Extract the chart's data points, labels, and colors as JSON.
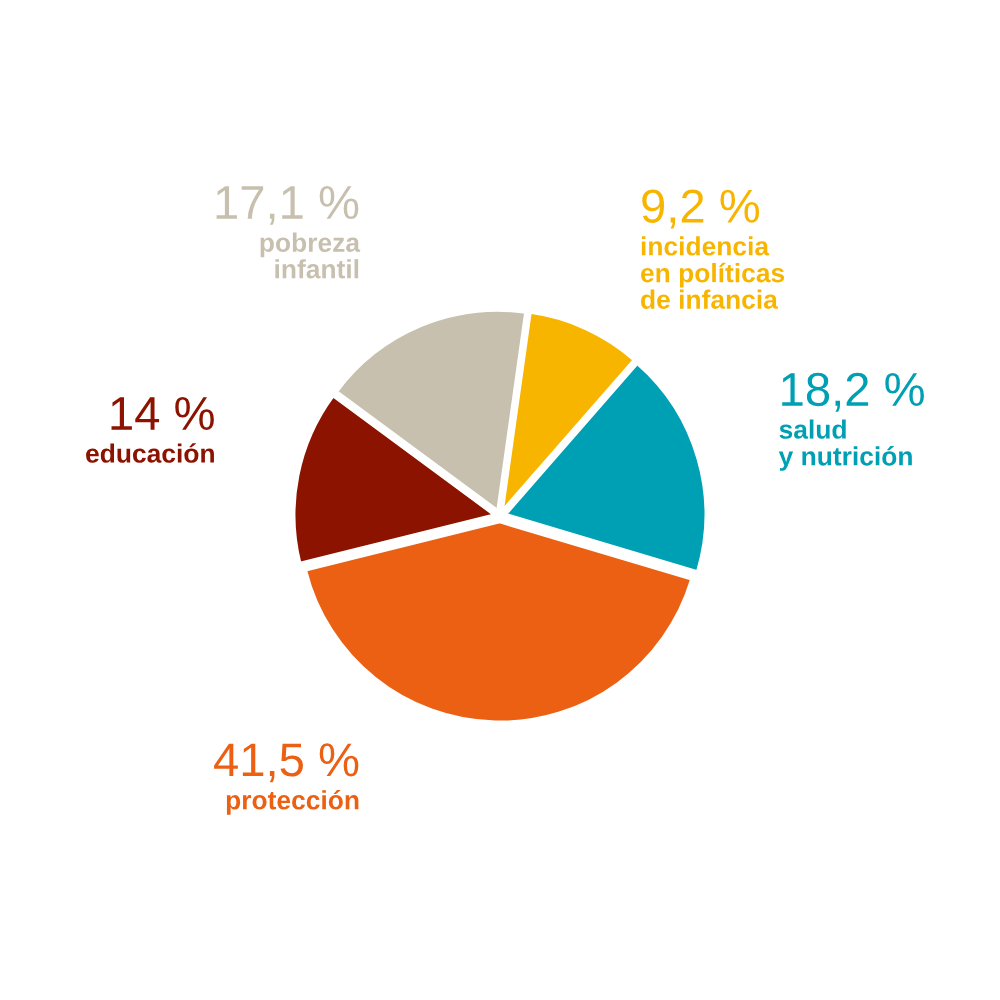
{
  "chart_data": {
    "type": "pie",
    "categories": [
      "incidencia\nen políticas\nde infancia",
      "salud\ny nutrición",
      "protección",
      "educación",
      "pobreza\ninfantil"
    ],
    "values": [
      9.2,
      18.2,
      41.5,
      14,
      17.1
    ],
    "value_labels": [
      "9,2 %",
      "18,2 %",
      "41,5 %",
      "14 %",
      "17,1 %"
    ],
    "colors": [
      "#f8b500",
      "#00a0b4",
      "#eb6012",
      "#8b1300",
      "#c8c0ae"
    ],
    "legend": false
  }
}
